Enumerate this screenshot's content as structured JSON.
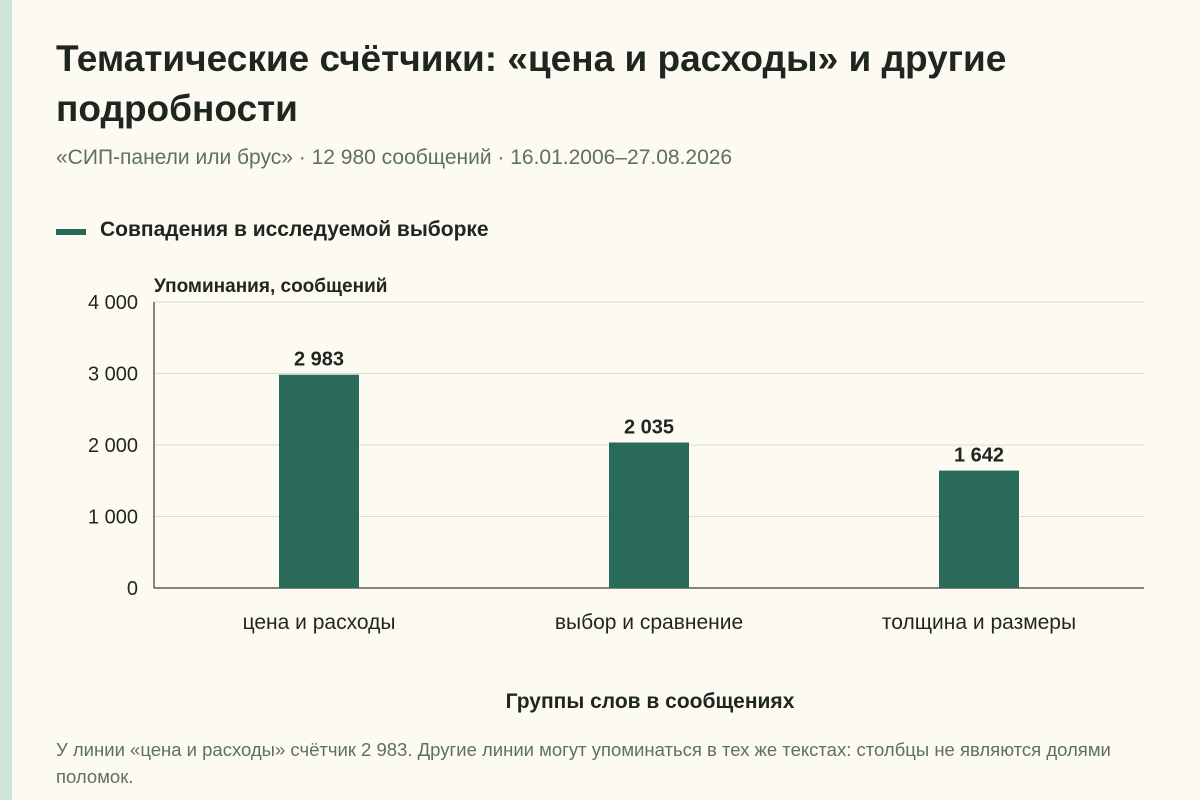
{
  "header": {
    "title": "Тематические счётчики: «цена и расходы» и другие подробности",
    "subtitle": "«СИП-панели или брус» · 12 980 сообщений · 16.01.2006–27.08.2026"
  },
  "legend": {
    "label": "Совпадения в исследуемой выборке",
    "color": "#2a6a5a"
  },
  "chart_data": {
    "type": "bar",
    "ylabel": "Упоминания, сообщений",
    "xlabel": "Группы слов в сообщениях",
    "categories": [
      "цена и расходы",
      "выбор и сравнение",
      "толщина и размеры"
    ],
    "values": [
      2983,
      2035,
      1642
    ],
    "value_labels": [
      "2 983",
      "2 035",
      "1 642"
    ],
    "ylim": [
      0,
      4000
    ],
    "yticks": [
      0,
      1000,
      2000,
      3000,
      4000
    ],
    "ytick_labels": [
      "0",
      "1 000",
      "2 000",
      "3 000",
      "4 000"
    ],
    "series": [
      {
        "name": "Совпадения в исследуемой выборке",
        "values": [
          2983,
          2035,
          1642
        ]
      }
    ],
    "grid": true,
    "bar_color": "#2a6a5a"
  },
  "footer": {
    "note": "У линии «цена и расходы» счётчик 2 983. Другие линии могут упоминаться в тех же текстах: столбцы не являются долями поломок."
  }
}
